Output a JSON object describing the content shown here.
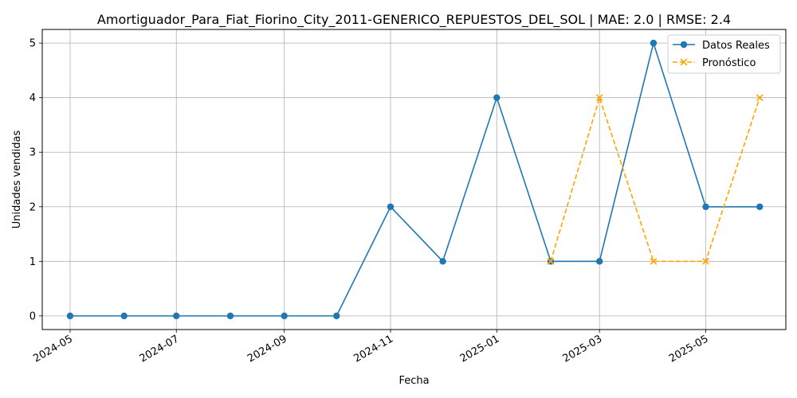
{
  "chart_data": {
    "type": "line",
    "title": "Amortiguador_Para_Fiat_Fiorino_City_2011-GENERICO_REPUESTOS_DEL_SOL | MAE: 2.0 | RMSE: 2.4",
    "xlabel": "Fecha",
    "ylabel": "Unidades vendidas",
    "x_ticks": [
      "2024-05",
      "2024-07",
      "2024-09",
      "2024-11",
      "2025-01",
      "2025-03",
      "2025-05"
    ],
    "y_ticks": [
      0,
      1,
      2,
      3,
      4,
      5
    ],
    "ylim": [
      -0.25,
      5.25
    ],
    "xlim": [
      "2024-04-15",
      "2025-06-16"
    ],
    "grid": true,
    "legend_position": "top-right",
    "series": [
      {
        "name": "Datos Reales",
        "color": "#1f77b4",
        "style": "solid",
        "marker": "circle",
        "x": [
          "2024-05-01",
          "2024-06-01",
          "2024-07-01",
          "2024-08-01",
          "2024-09-01",
          "2024-10-01",
          "2024-11-01",
          "2024-12-01",
          "2025-01-01",
          "2025-02-01",
          "2025-03-01",
          "2025-04-01",
          "2025-05-01",
          "2025-06-01"
        ],
        "values": [
          0,
          0,
          0,
          0,
          0,
          0,
          2,
          1,
          4,
          1,
          1,
          5,
          2,
          2
        ]
      },
      {
        "name": "Pronóstico",
        "color": "#ffa500",
        "style": "dashed",
        "marker": "x",
        "x": [
          "2025-02-01",
          "2025-03-01",
          "2025-04-01",
          "2025-05-01",
          "2025-06-01"
        ],
        "values": [
          1,
          4,
          1,
          1,
          4
        ]
      }
    ]
  }
}
